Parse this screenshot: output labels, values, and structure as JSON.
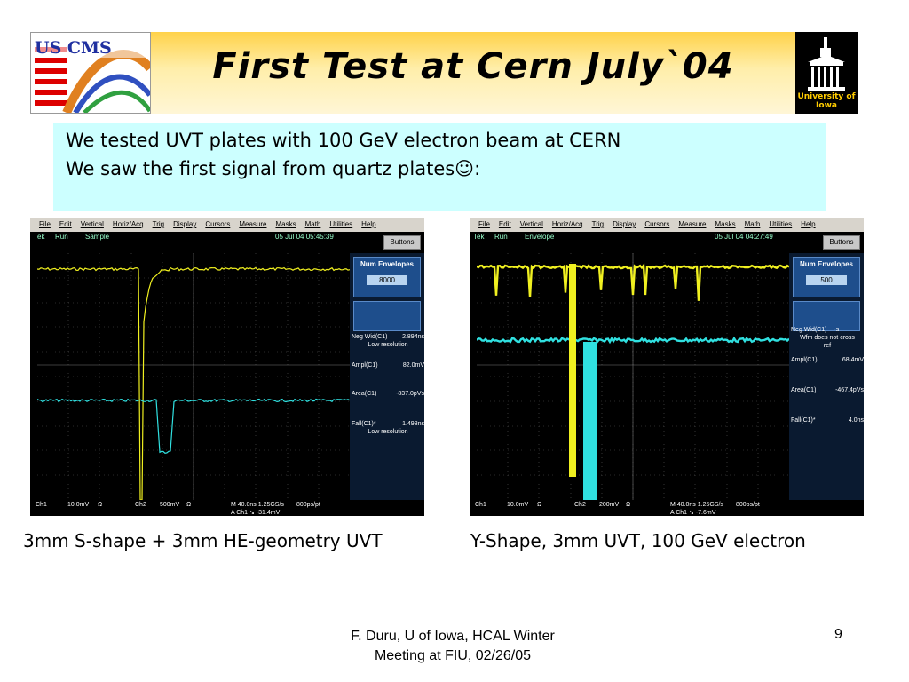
{
  "slide": {
    "title": "First Test at Cern July`04",
    "bullets": [
      "We tested UVT plates with 100 GeV electron beam at CERN",
      "We saw the first signal from quartz plates☺:"
    ],
    "captions": [
      "3mm S-shape + 3mm HE-geometry UVT",
      "Y-Shape, 3mm UVT, 100 GeV electron"
    ],
    "footer_line1": "F. Duru, U of Iowa, HCAL Winter",
    "footer_line2": "Meeting at FIU, 02/26/05",
    "page_number": "9",
    "iowa_logo_text": "University of Iowa",
    "uscms_logo_text": "US CMS"
  },
  "menu": [
    "File",
    "Edit",
    "Vertical",
    "Horiz/Acq",
    "Trig",
    "Display",
    "Cursors",
    "Measure",
    "Masks",
    "Math",
    "Utilities",
    "Help"
  ],
  "scopes": [
    {
      "tek": "Tek",
      "run": "Run",
      "mode": "Sample",
      "datetime": "05 Jul 04 05:45:39",
      "buttons": "Buttons",
      "panel_title": "Num Envelopes",
      "panel_value": "8000",
      "measurements": [
        {
          "label": "Neg Wid(C1)",
          "value": "2.894ns",
          "note": "Low resolution"
        },
        {
          "label": "Ampl(C1)",
          "value": "82.0mV",
          "note": ""
        },
        {
          "label": "Area(C1)",
          "value": "-837.0pVs",
          "note": ""
        },
        {
          "label": "Fall(C1)*",
          "value": "1.498ns",
          "note": "Low resolution"
        }
      ],
      "ch1": "Ch1",
      "ch1_scale": "10.0mV",
      "ohm1": "Ω",
      "ch2": "Ch2",
      "ch2_scale": "500mV",
      "ohm2": "Ω",
      "timebase": "M 40.0ns 1.25GS/s",
      "record": "800ps/pt",
      "trigger": "A  Ch1  ↘  -31.4mV"
    },
    {
      "tek": "Tek",
      "run": "Run",
      "mode": "Envelope",
      "datetime": "05 Jul 04 04:27:49",
      "buttons": "Buttons",
      "panel_title": "Num Envelopes",
      "panel_value": "500",
      "measurements": [
        {
          "label": "Neg Wid(C1)",
          "value": "-s",
          "note": "Wfm does not cross ref"
        },
        {
          "label": "Ampl(C1)",
          "value": "68.4mV",
          "note": ""
        },
        {
          "label": "Area(C1)",
          "value": "-467.4pVs",
          "note": ""
        },
        {
          "label": "Fall(C1)*",
          "value": "4.0ns",
          "note": ""
        }
      ],
      "ch1": "Ch1",
      "ch1_scale": "10.0mV",
      "ohm1": "Ω",
      "ch2": "Ch2",
      "ch2_scale": "200mV",
      "ohm2": "Ω",
      "timebase": "M 40.0ns 1.25GS/s",
      "record": "800ps/pt",
      "trigger": "A  Ch1  ↘  -7.6mV"
    }
  ],
  "colors": {
    "ch1": "#f0f020",
    "ch2": "#30e0e0",
    "grid": "#555555",
    "title_bar": "#ffd24a",
    "text_box": "#ccffff"
  }
}
